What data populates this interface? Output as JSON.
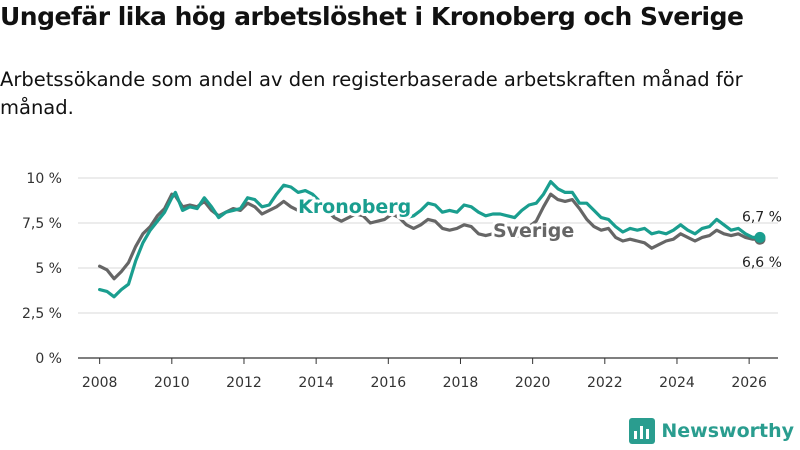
{
  "chart_data": {
    "type": "line",
    "title": "Ungefär lika hög arbetslöshet i Kronoberg och Sverige",
    "subtitle": "Arbetssökande som andel av den registerbaserade arbetskraften månad för månad.",
    "xlabel": "",
    "ylabel": "",
    "ylim": [
      0,
      10
    ],
    "xlim": [
      2007.4,
      2026.8
    ],
    "x_ticks": [
      2008,
      2010,
      2012,
      2014,
      2016,
      2018,
      2020,
      2022,
      2024,
      2026
    ],
    "x_tick_labels": [
      "2008",
      "2010",
      "2012",
      "2014",
      "2016",
      "2018",
      "2020",
      "2022",
      "2024",
      "2026"
    ],
    "y_ticks": [
      0,
      2.5,
      5,
      7.5,
      10
    ],
    "y_tick_labels": [
      "0 %",
      "2,5 %",
      "5 %",
      "7,5 %",
      "10 %"
    ],
    "grid": true,
    "series": [
      {
        "name": "Sverige",
        "label": "Sverige",
        "color": "#666666",
        "end_label": "6,6 %",
        "points": [
          [
            2008.0,
            5.1
          ],
          [
            2008.2,
            4.9
          ],
          [
            2008.4,
            4.4
          ],
          [
            2008.6,
            4.8
          ],
          [
            2008.8,
            5.3
          ],
          [
            2009.0,
            6.2
          ],
          [
            2009.2,
            6.9
          ],
          [
            2009.4,
            7.3
          ],
          [
            2009.6,
            7.9
          ],
          [
            2009.8,
            8.3
          ],
          [
            2010.0,
            9.1
          ],
          [
            2010.1,
            9.0
          ],
          [
            2010.3,
            8.4
          ],
          [
            2010.5,
            8.5
          ],
          [
            2010.7,
            8.4
          ],
          [
            2010.9,
            8.7
          ],
          [
            2011.1,
            8.2
          ],
          [
            2011.3,
            7.9
          ],
          [
            2011.5,
            8.1
          ],
          [
            2011.7,
            8.3
          ],
          [
            2011.9,
            8.2
          ],
          [
            2012.1,
            8.6
          ],
          [
            2012.3,
            8.4
          ],
          [
            2012.5,
            8.0
          ],
          [
            2012.7,
            8.2
          ],
          [
            2012.9,
            8.4
          ],
          [
            2013.1,
            8.7
          ],
          [
            2013.3,
            8.4
          ],
          [
            2013.5,
            8.2
          ],
          [
            2013.7,
            8.4
          ],
          [
            2013.9,
            8.3
          ],
          [
            2014.1,
            8.4
          ],
          [
            2014.3,
            8.2
          ],
          [
            2014.5,
            7.8
          ],
          [
            2014.7,
            7.6
          ],
          [
            2014.9,
            7.8
          ],
          [
            2015.1,
            8.0
          ],
          [
            2015.3,
            7.9
          ],
          [
            2015.5,
            7.5
          ],
          [
            2015.7,
            7.6
          ],
          [
            2015.9,
            7.7
          ],
          [
            2016.1,
            8.0
          ],
          [
            2016.3,
            7.8
          ],
          [
            2016.5,
            7.4
          ],
          [
            2016.7,
            7.2
          ],
          [
            2016.9,
            7.4
          ],
          [
            2017.1,
            7.7
          ],
          [
            2017.3,
            7.6
          ],
          [
            2017.5,
            7.2
          ],
          [
            2017.7,
            7.1
          ],
          [
            2017.9,
            7.2
          ],
          [
            2018.1,
            7.4
          ],
          [
            2018.3,
            7.3
          ],
          [
            2018.5,
            6.9
          ],
          [
            2018.7,
            6.8
          ],
          [
            2018.9,
            6.9
          ],
          [
            2019.1,
            7.0
          ],
          [
            2019.3,
            7.0
          ],
          [
            2019.5,
            6.7
          ],
          [
            2019.7,
            6.9
          ],
          [
            2019.9,
            7.3
          ],
          [
            2020.1,
            7.6
          ],
          [
            2020.3,
            8.4
          ],
          [
            2020.5,
            9.1
          ],
          [
            2020.7,
            8.8
          ],
          [
            2020.9,
            8.7
          ],
          [
            2021.1,
            8.8
          ],
          [
            2021.3,
            8.3
          ],
          [
            2021.5,
            7.7
          ],
          [
            2021.7,
            7.3
          ],
          [
            2021.9,
            7.1
          ],
          [
            2022.1,
            7.2
          ],
          [
            2022.3,
            6.7
          ],
          [
            2022.5,
            6.5
          ],
          [
            2022.7,
            6.6
          ],
          [
            2022.9,
            6.5
          ],
          [
            2023.1,
            6.4
          ],
          [
            2023.3,
            6.1
          ],
          [
            2023.5,
            6.3
          ],
          [
            2023.7,
            6.5
          ],
          [
            2023.9,
            6.6
          ],
          [
            2024.1,
            6.9
          ],
          [
            2024.3,
            6.7
          ],
          [
            2024.5,
            6.5
          ],
          [
            2024.7,
            6.7
          ],
          [
            2024.9,
            6.8
          ],
          [
            2025.1,
            7.1
          ],
          [
            2025.3,
            6.9
          ],
          [
            2025.5,
            6.8
          ],
          [
            2025.7,
            6.9
          ],
          [
            2025.9,
            6.7
          ],
          [
            2026.1,
            6.6
          ],
          [
            2026.3,
            6.6
          ]
        ]
      },
      {
        "name": "Kronoberg",
        "label": "Kronoberg",
        "color": "#1a9e8f",
        "end_label": "6,7 %",
        "points": [
          [
            2008.0,
            3.8
          ],
          [
            2008.2,
            3.7
          ],
          [
            2008.4,
            3.4
          ],
          [
            2008.6,
            3.8
          ],
          [
            2008.8,
            4.1
          ],
          [
            2009.0,
            5.4
          ],
          [
            2009.2,
            6.4
          ],
          [
            2009.4,
            7.1
          ],
          [
            2009.6,
            7.6
          ],
          [
            2009.8,
            8.1
          ],
          [
            2010.0,
            8.9
          ],
          [
            2010.1,
            9.2
          ],
          [
            2010.3,
            8.2
          ],
          [
            2010.5,
            8.4
          ],
          [
            2010.7,
            8.3
          ],
          [
            2010.9,
            8.9
          ],
          [
            2011.1,
            8.4
          ],
          [
            2011.3,
            7.8
          ],
          [
            2011.5,
            8.1
          ],
          [
            2011.7,
            8.2
          ],
          [
            2011.9,
            8.3
          ],
          [
            2012.1,
            8.9
          ],
          [
            2012.3,
            8.8
          ],
          [
            2012.5,
            8.4
          ],
          [
            2012.7,
            8.5
          ],
          [
            2012.9,
            9.1
          ],
          [
            2013.1,
            9.6
          ],
          [
            2013.3,
            9.5
          ],
          [
            2013.5,
            9.2
          ],
          [
            2013.7,
            9.3
          ],
          [
            2013.9,
            9.1
          ],
          [
            2014.1,
            8.7
          ],
          [
            2014.3,
            8.5
          ],
          [
            2014.5,
            8.0
          ],
          [
            2014.7,
            8.0
          ],
          [
            2014.9,
            8.3
          ],
          [
            2015.1,
            8.5
          ],
          [
            2015.3,
            8.6
          ],
          [
            2015.5,
            8.3
          ],
          [
            2015.7,
            8.5
          ],
          [
            2015.9,
            8.6
          ],
          [
            2016.1,
            8.7
          ],
          [
            2016.3,
            8.4
          ],
          [
            2016.5,
            7.8
          ],
          [
            2016.7,
            7.9
          ],
          [
            2016.9,
            8.2
          ],
          [
            2017.1,
            8.6
          ],
          [
            2017.3,
            8.5
          ],
          [
            2017.5,
            8.1
          ],
          [
            2017.7,
            8.2
          ],
          [
            2017.9,
            8.1
          ],
          [
            2018.1,
            8.5
          ],
          [
            2018.3,
            8.4
          ],
          [
            2018.5,
            8.1
          ],
          [
            2018.7,
            7.9
          ],
          [
            2018.9,
            8.0
          ],
          [
            2019.1,
            8.0
          ],
          [
            2019.3,
            7.9
          ],
          [
            2019.5,
            7.8
          ],
          [
            2019.7,
            8.2
          ],
          [
            2019.9,
            8.5
          ],
          [
            2020.1,
            8.6
          ],
          [
            2020.3,
            9.1
          ],
          [
            2020.5,
            9.8
          ],
          [
            2020.7,
            9.4
          ],
          [
            2020.9,
            9.2
          ],
          [
            2021.1,
            9.2
          ],
          [
            2021.3,
            8.6
          ],
          [
            2021.5,
            8.6
          ],
          [
            2021.7,
            8.2
          ],
          [
            2021.9,
            7.8
          ],
          [
            2022.1,
            7.7
          ],
          [
            2022.3,
            7.3
          ],
          [
            2022.5,
            7.0
          ],
          [
            2022.7,
            7.2
          ],
          [
            2022.9,
            7.1
          ],
          [
            2023.1,
            7.2
          ],
          [
            2023.3,
            6.9
          ],
          [
            2023.5,
            7.0
          ],
          [
            2023.7,
            6.9
          ],
          [
            2023.9,
            7.1
          ],
          [
            2024.1,
            7.4
          ],
          [
            2024.3,
            7.1
          ],
          [
            2024.5,
            6.9
          ],
          [
            2024.7,
            7.2
          ],
          [
            2024.9,
            7.3
          ],
          [
            2025.1,
            7.7
          ],
          [
            2025.3,
            7.4
          ],
          [
            2025.5,
            7.1
          ],
          [
            2025.7,
            7.2
          ],
          [
            2025.9,
            6.9
          ],
          [
            2026.1,
            6.7
          ],
          [
            2026.3,
            6.7
          ]
        ]
      }
    ]
  },
  "branding": {
    "logo_text": "Newsworthy",
    "color": "#2a9d8f"
  }
}
